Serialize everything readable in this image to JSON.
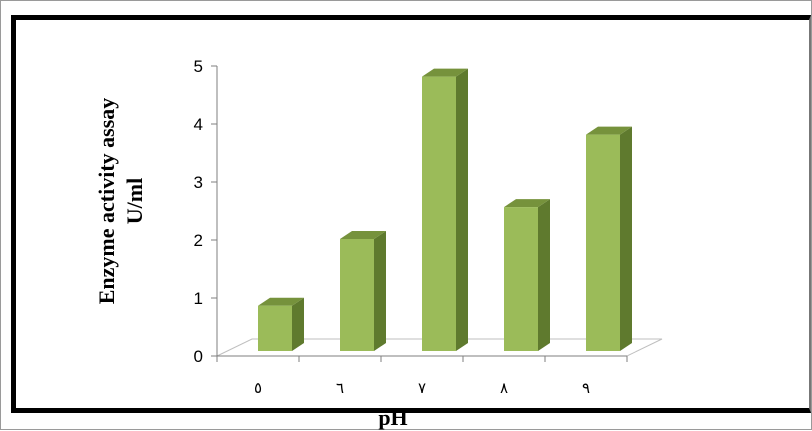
{
  "chart_data": {
    "type": "bar",
    "title": "",
    "xlabel": "pH",
    "ylabel_line1": "Enzyme activity assay",
    "ylabel_line2": "U/ml",
    "categories": [
      "٥",
      "٦",
      "٧",
      "٨",
      "٩"
    ],
    "values": [
      0.85,
      2.0,
      4.8,
      2.55,
      3.8
    ],
    "ylim": [
      0,
      5
    ],
    "yticks": [
      0,
      1,
      2,
      3,
      4,
      5
    ],
    "grid": false,
    "legend": "none",
    "style": "3d-column",
    "colors": {
      "front": "#9bbb59",
      "side": "#5f7a2e",
      "top": "#76923c"
    }
  }
}
